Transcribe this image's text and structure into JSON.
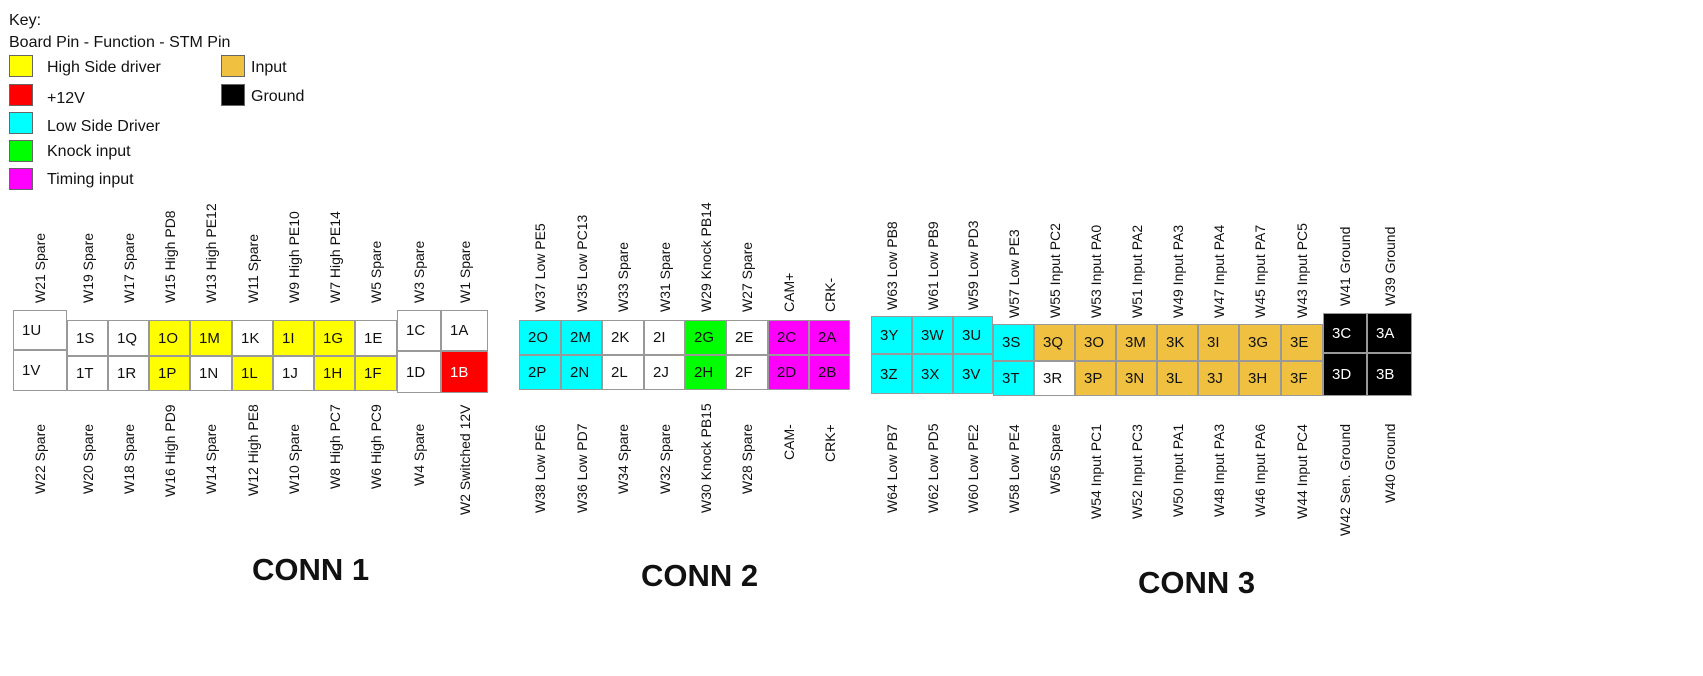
{
  "key": {
    "title": "Key:",
    "subtitle": "Board Pin - Function - STM Pin",
    "items": [
      {
        "label": "High Side driver",
        "color": "#ffff00"
      },
      {
        "label": "+12V",
        "color": "#ff0000"
      },
      {
        "label": "Low Side Driver",
        "color": "#00ffff"
      },
      {
        "label": "Knock input",
        "color": "#00ff00"
      },
      {
        "label": "Timing input",
        "color": "#ff00ff"
      },
      {
        "label": "Input",
        "color": "#f0c040"
      },
      {
        "label": "Ground",
        "color": "#000000"
      }
    ]
  },
  "colors": {
    "high_side": "#ffff00",
    "plus12v": "#ff0000",
    "low_side": "#00ffff",
    "knock": "#00ff00",
    "timing": "#ff00ff",
    "input": "#f0c040",
    "ground": "#000000",
    "plain": "#ffffff"
  },
  "connectors": [
    {
      "title": "CONN 1",
      "columns": [
        {
          "top_label": "W21 Spare",
          "top_pin": "1U",
          "top_type": "plain",
          "bottom_label": "W22 Spare",
          "bottom_pin": "1V",
          "bottom_type": "plain"
        },
        {
          "top_label": "W19 Spare",
          "top_pin": "1S",
          "top_type": "plain",
          "bottom_label": "W20 Spare",
          "bottom_pin": "1T",
          "bottom_type": "plain"
        },
        {
          "top_label": "W17 Spare",
          "top_pin": "1Q",
          "top_type": "plain",
          "bottom_label": "W18 Spare",
          "bottom_pin": "1R",
          "bottom_type": "plain"
        },
        {
          "top_label": "W15 High PD8",
          "top_pin": "1O",
          "top_type": "high_side",
          "bottom_label": "W16 High PD9",
          "bottom_pin": "1P",
          "bottom_type": "high_side"
        },
        {
          "top_label": "W13 High PE12",
          "top_pin": "1M",
          "top_type": "high_side",
          "bottom_label": "W14 Spare",
          "bottom_pin": "1N",
          "bottom_type": "plain"
        },
        {
          "top_label": "W11 Spare",
          "top_pin": "1K",
          "top_type": "plain",
          "bottom_label": "W12 High PE8",
          "bottom_pin": "1L",
          "bottom_type": "high_side"
        },
        {
          "top_label": "W9 High PE10",
          "top_pin": "1I",
          "top_type": "high_side",
          "bottom_label": "W10 Spare",
          "bottom_pin": "1J",
          "bottom_type": "plain"
        },
        {
          "top_label": "W7 High PE14",
          "top_pin": "1G",
          "top_type": "high_side",
          "bottom_label": "W8 High PC7",
          "bottom_pin": "1H",
          "bottom_type": "high_side"
        },
        {
          "top_label": "W5 Spare",
          "top_pin": "1E",
          "top_type": "plain",
          "bottom_label": "W6 High PC9",
          "bottom_pin": "1F",
          "bottom_type": "high_side"
        },
        {
          "top_label": "W3 Spare",
          "top_pin": "1C",
          "top_type": "plain",
          "bottom_label": "W4 Spare",
          "bottom_pin": "1D",
          "bottom_type": "plain"
        },
        {
          "top_label": "W1 Spare",
          "top_pin": "1A",
          "top_type": "plain",
          "bottom_label": "W2 Switched 12V",
          "bottom_pin": "1B",
          "bottom_type": "plus12v"
        }
      ]
    },
    {
      "title": "CONN 2",
      "columns": [
        {
          "top_label": "W37 Low PE5",
          "top_pin": "2O",
          "top_type": "low_side",
          "bottom_label": "W38 Low PE6",
          "bottom_pin": "2P",
          "bottom_type": "low_side"
        },
        {
          "top_label": "W35 Low PC13",
          "top_pin": "2M",
          "top_type": "low_side",
          "bottom_label": "W36 Low PD7",
          "bottom_pin": "2N",
          "bottom_type": "low_side"
        },
        {
          "top_label": "W33 Spare",
          "top_pin": "2K",
          "top_type": "plain",
          "bottom_label": "W34 Spare",
          "bottom_pin": "2L",
          "bottom_type": "plain"
        },
        {
          "top_label": "W31 Spare",
          "top_pin": "2I",
          "top_type": "plain",
          "bottom_label": "W32 Spare",
          "bottom_pin": "2J",
          "bottom_type": "plain"
        },
        {
          "top_label": "W29 Knock PB14",
          "top_pin": "2G",
          "top_type": "knock",
          "bottom_label": "W30 Knock PB15",
          "bottom_pin": "2H",
          "bottom_type": "knock"
        },
        {
          "top_label": "W27 Spare",
          "top_pin": "2E",
          "top_type": "plain",
          "bottom_label": "W28 Spare",
          "bottom_pin": "2F",
          "bottom_type": "plain"
        },
        {
          "top_label": "CAM+",
          "top_pin": "2C",
          "top_type": "timing",
          "bottom_label": "CAM-",
          "bottom_pin": "2D",
          "bottom_type": "timing"
        },
        {
          "top_label": "CRK-",
          "top_pin": "2A",
          "top_type": "timing",
          "bottom_label": "CRK+",
          "bottom_pin": "2B",
          "bottom_type": "timing"
        }
      ]
    },
    {
      "title": "CONN 3",
      "columns": [
        {
          "top_label": "W63 Low PB8",
          "top_pin": "3Y",
          "top_type": "low_side",
          "bottom_label": "W64 Low PB7",
          "bottom_pin": "3Z",
          "bottom_type": "low_side"
        },
        {
          "top_label": "W61 Low PB9",
          "top_pin": "3W",
          "top_type": "low_side",
          "bottom_label": "W62 Low PD5",
          "bottom_pin": "3X",
          "bottom_type": "low_side"
        },
        {
          "top_label": "W59 Low PD3",
          "top_pin": "3U",
          "top_type": "low_side",
          "bottom_label": "W60 Low PE2",
          "bottom_pin": "3V",
          "bottom_type": "low_side"
        },
        {
          "top_label": "W57 Low PE3",
          "top_pin": "3S",
          "top_type": "low_side",
          "bottom_label": "W58 Low PE4",
          "bottom_pin": "3T",
          "bottom_type": "low_side"
        },
        {
          "top_label": "W55 Input PC2",
          "top_pin": "3Q",
          "top_type": "input",
          "bottom_label": "W56 Spare",
          "bottom_pin": "3R",
          "bottom_type": "plain"
        },
        {
          "top_label": "W53 Input PA0",
          "top_pin": "3O",
          "top_type": "input",
          "bottom_label": "W54 Input PC1",
          "bottom_pin": "3P",
          "bottom_type": "input"
        },
        {
          "top_label": "W51 Input PA2",
          "top_pin": "3M",
          "top_type": "input",
          "bottom_label": "W52 Input PC3",
          "bottom_pin": "3N",
          "bottom_type": "input"
        },
        {
          "top_label": "W49 Input PA3",
          "top_pin": "3K",
          "top_type": "input",
          "bottom_label": "W50 Input PA1",
          "bottom_pin": "3L",
          "bottom_type": "input"
        },
        {
          "top_label": "W47 Input PA4",
          "top_pin": "3I",
          "top_type": "input",
          "bottom_label": "W48 Input PA3",
          "bottom_pin": "3J",
          "bottom_type": "input"
        },
        {
          "top_label": "W45 Input PA7",
          "top_pin": "3G",
          "top_type": "input",
          "bottom_label": "W46 Input PA6",
          "bottom_pin": "3H",
          "bottom_type": "input"
        },
        {
          "top_label": "W43 Input PC5",
          "top_pin": "3E",
          "top_type": "input",
          "bottom_label": "W44 Input PC4",
          "bottom_pin": "3F",
          "bottom_type": "input"
        },
        {
          "top_label": "W41 Ground",
          "top_pin": "3C",
          "top_type": "ground",
          "bottom_label": "W42 Sen. Ground",
          "bottom_pin": "3D",
          "bottom_type": "ground"
        },
        {
          "top_label": "W39 Ground",
          "top_pin": "3A",
          "top_type": "ground",
          "bottom_label": "W40 Ground",
          "bottom_pin": "3B",
          "bottom_type": "ground"
        }
      ]
    }
  ]
}
